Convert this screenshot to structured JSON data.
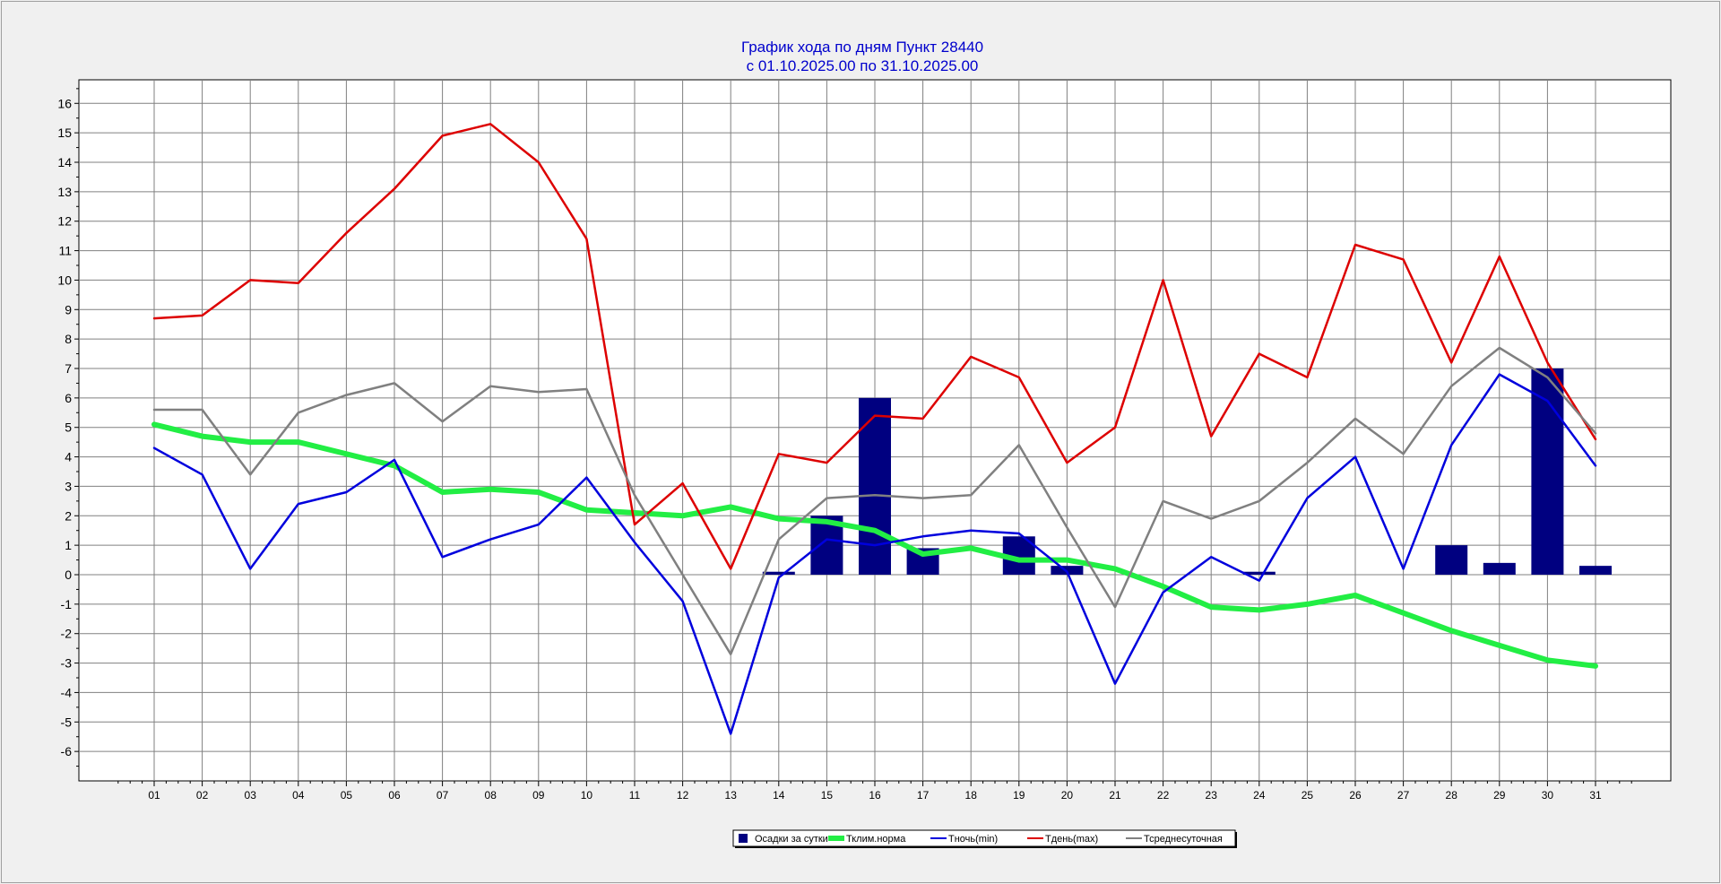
{
  "chart_data": {
    "type": "line",
    "title": "График хода по дням  Пункт 28440",
    "subtitle": "с 01.10.2025.00 по 31.10.2025.00",
    "categories": [
      "01",
      "02",
      "03",
      "04",
      "05",
      "06",
      "07",
      "08",
      "09",
      "10",
      "11",
      "12",
      "13",
      "14",
      "15",
      "16",
      "17",
      "18",
      "19",
      "20",
      "21",
      "22",
      "23",
      "24",
      "25",
      "26",
      "27",
      "28",
      "29",
      "30",
      "31"
    ],
    "ylim": [
      -7,
      16.8
    ],
    "yticks": [
      -6,
      -5,
      -4,
      -3,
      -2,
      -1,
      0,
      1,
      2,
      3,
      4,
      5,
      6,
      7,
      8,
      9,
      10,
      11,
      12,
      13,
      14,
      15,
      16
    ],
    "grid": true,
    "legend_position": "bottom-center",
    "series": [
      {
        "name": "Осадки за сутки",
        "kind": "bar",
        "color": "#000080",
        "values": [
          null,
          null,
          null,
          null,
          null,
          null,
          null,
          null,
          null,
          null,
          null,
          null,
          null,
          0.1,
          2.0,
          6.0,
          0.9,
          null,
          1.3,
          0.3,
          null,
          null,
          null,
          0.1,
          null,
          null,
          null,
          1.0,
          0.4,
          7.0,
          0.3
        ]
      },
      {
        "name": "Тклим.норма",
        "kind": "line",
        "color": "#22ee44",
        "values": [
          5.1,
          4.7,
          4.5,
          4.5,
          4.1,
          3.7,
          2.8,
          2.9,
          2.8,
          2.2,
          2.1,
          2.0,
          2.3,
          1.9,
          1.8,
          1.5,
          0.7,
          0.9,
          0.5,
          0.5,
          0.2,
          -0.4,
          -1.1,
          -1.2,
          -1.0,
          -0.7,
          -1.3,
          -1.9,
          -2.4,
          -2.9,
          -3.1
        ]
      },
      {
        "name": "Тночь(min)",
        "kind": "line",
        "color": "#0000dd",
        "values": [
          4.3,
          3.4,
          0.2,
          2.4,
          2.8,
          3.9,
          0.6,
          1.2,
          1.7,
          3.3,
          1.1,
          -0.9,
          -5.4,
          -0.1,
          1.2,
          1.0,
          1.3,
          1.5,
          1.4,
          0.1,
          -3.7,
          -0.6,
          0.6,
          -0.2,
          2.6,
          4.0,
          0.2,
          4.4,
          6.8,
          5.9,
          3.7
        ]
      },
      {
        "name": "Тдень(max)",
        "kind": "line",
        "color": "#dd0000",
        "values": [
          8.7,
          8.8,
          10.0,
          9.9,
          11.6,
          13.1,
          14.9,
          15.3,
          14.0,
          11.4,
          1.7,
          3.1,
          0.2,
          4.1,
          3.8,
          5.4,
          5.3,
          7.4,
          6.7,
          3.8,
          5.0,
          10.0,
          4.7,
          7.5,
          6.7,
          11.2,
          10.7,
          7.2,
          10.8,
          7.2,
          4.6
        ]
      },
      {
        "name": "Тсреднесуточная",
        "kind": "line",
        "color": "#808080",
        "values": [
          5.6,
          5.6,
          3.4,
          5.5,
          6.1,
          6.5,
          5.2,
          6.4,
          6.2,
          6.3,
          2.7,
          0.0,
          -2.7,
          1.2,
          2.6,
          2.7,
          2.6,
          2.7,
          4.4,
          1.6,
          -1.1,
          2.5,
          1.9,
          2.5,
          3.8,
          5.3,
          4.1,
          6.4,
          7.7,
          6.7,
          4.8
        ]
      }
    ]
  }
}
